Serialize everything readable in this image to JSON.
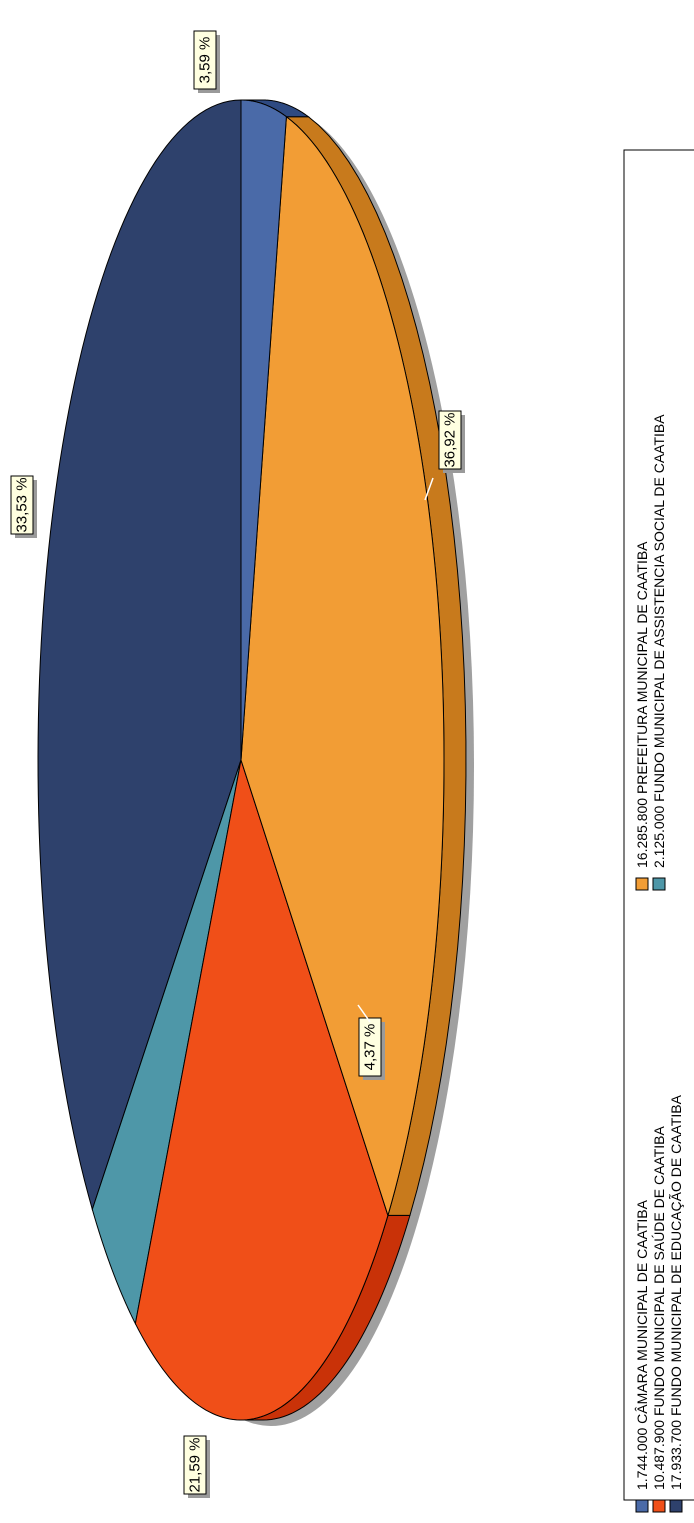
{
  "chart_data": {
    "type": "pie",
    "title": "",
    "orientation": "rotated-90-ccw",
    "legend_placement": "right",
    "slices": [
      {
        "value": "1.744.000",
        "name": "CÂMARA MUNICIPAL DE CAATIBA",
        "percent": 3.59,
        "percent_label": "3,59 %",
        "color": "#4a6aa8",
        "side_color": "#2e4a82"
      },
      {
        "value": "16.285.800",
        "name": "PREFEITURA MUNICIPAL DE CAATIBA",
        "percent": 33.53,
        "percent_label": "33,53 %",
        "color": "#f29d35",
        "side_color": "#c87a1c"
      },
      {
        "value": "10.487.900",
        "name": "FUNDO MUNICIPAL DE SAÚDE DE CAATIBA",
        "percent": 21.59,
        "percent_label": "21,59 %",
        "color": "#f04f18",
        "side_color": "#c93208"
      },
      {
        "value": "2.125.000",
        "name": "FUNDO MUNICIPAL DE ASSISTENCIA SOCIAL DE CAATIBA",
        "percent": 4.37,
        "percent_label": "4,37 %",
        "color": "#4e97a8",
        "side_color": "#2f7789"
      },
      {
        "value": "17.933.700",
        "name": "FUNDO MUNICIPAL DE EDUCAÇÃO DE CAATIBA",
        "percent": 36.92,
        "percent_label": "36,92 %",
        "color": "#2e416c",
        "side_color": "#0e1f4a"
      }
    ],
    "legend_order": [
      0,
      2,
      4,
      1,
      3
    ]
  }
}
